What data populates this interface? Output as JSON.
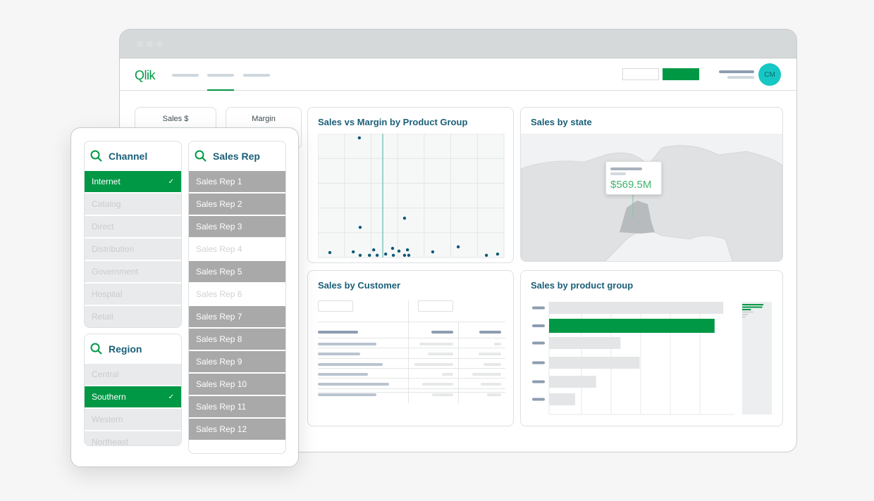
{
  "app": {
    "logo": "Qlik",
    "user_initials": "CM"
  },
  "colors": {
    "brand_green": "#009845",
    "title_teal": "#1a5f78",
    "avatar": "#17c7c4",
    "point": "#0d5a78"
  },
  "kpis": [
    {
      "label": "Sales $"
    },
    {
      "label": "Margin"
    }
  ],
  "filters": {
    "channel": {
      "title": "Channel",
      "items": [
        {
          "label": "Internet",
          "state": "selected"
        },
        {
          "label": "Catalog",
          "state": "excluded"
        },
        {
          "label": "Direct",
          "state": "excluded"
        },
        {
          "label": "Distribution",
          "state": "excluded"
        },
        {
          "label": "Government",
          "state": "excluded"
        },
        {
          "label": "Hospital",
          "state": "excluded"
        },
        {
          "label": "Retail",
          "state": "excluded"
        }
      ]
    },
    "region": {
      "title": "Region",
      "items": [
        {
          "label": "Central",
          "state": "excluded"
        },
        {
          "label": "Southern",
          "state": "selected"
        },
        {
          "label": "Western",
          "state": "excluded"
        },
        {
          "label": "Northeast",
          "state": "excluded"
        }
      ]
    },
    "sales_rep": {
      "title": "Sales Rep",
      "items": [
        {
          "label": "Sales Rep 1",
          "state": "alternative"
        },
        {
          "label": "Sales Rep 2",
          "state": "alternative"
        },
        {
          "label": "Sales Rep 3",
          "state": "alternative"
        },
        {
          "label": "Sales Rep 4",
          "state": "possible"
        },
        {
          "label": "Sales Rep 5",
          "state": "alternative"
        },
        {
          "label": "Sales Rep 6",
          "state": "possible"
        },
        {
          "label": "Sales Rep 7",
          "state": "alternative"
        },
        {
          "label": "Sales Rep 8",
          "state": "alternative"
        },
        {
          "label": "Sales Rep 9",
          "state": "alternative"
        },
        {
          "label": "Sales Rep 10",
          "state": "alternative"
        },
        {
          "label": "Sales Rep 11",
          "state": "alternative"
        },
        {
          "label": "Sales Rep 12",
          "state": "alternative"
        }
      ]
    }
  },
  "map": {
    "title": "Sales by state",
    "tooltip_value": "$569.5M"
  },
  "table": {
    "title": "Sales by Customer"
  },
  "chart_data": [
    {
      "type": "scatter",
      "title": "Sales vs Margin by Product Group",
      "xlim": [
        0,
        7
      ],
      "ylim": [
        0,
        5
      ],
      "grid": true,
      "reference_line_x": 2.44,
      "points": [
        [
          1.56,
          4.83
        ],
        [
          1.59,
          1.22
        ],
        [
          3.26,
          1.59
        ],
        [
          0.45,
          0.2
        ],
        [
          1.33,
          0.23
        ],
        [
          1.59,
          0.09
        ],
        [
          1.94,
          0.09
        ],
        [
          2.1,
          0.31
        ],
        [
          2.23,
          0.09
        ],
        [
          2.55,
          0.14
        ],
        [
          2.81,
          0.37
        ],
        [
          2.84,
          0.09
        ],
        [
          3.05,
          0.26
        ],
        [
          3.26,
          0.09
        ],
        [
          3.37,
          0.31
        ],
        [
          3.42,
          0.09
        ],
        [
          4.32,
          0.23
        ],
        [
          5.28,
          0.43
        ],
        [
          6.34,
          0.09
        ],
        [
          6.76,
          0.14
        ]
      ]
    },
    {
      "type": "bar",
      "orientation": "horizontal",
      "title": "Sales by product group",
      "values": [
        100,
        95,
        41,
        52,
        27,
        15
      ],
      "highlighted_index": 1,
      "xlim": [
        0,
        106
      ],
      "grid": true
    }
  ]
}
